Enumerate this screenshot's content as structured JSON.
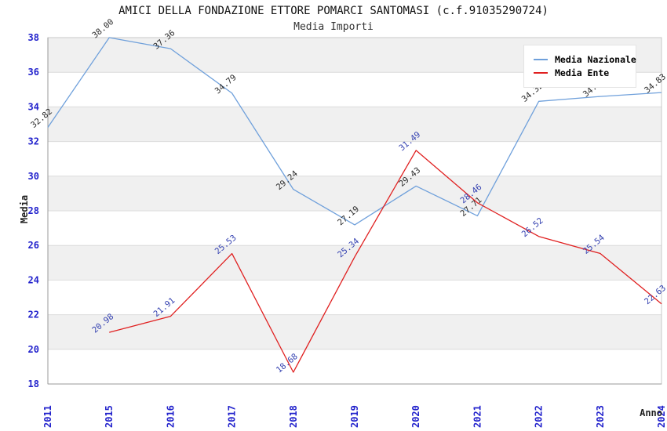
{
  "header": {
    "title": "AMICI DELLA FONDAZIONE ETTORE POMARCI SANTOMASI (c.f.91035290724)",
    "subtitle": "Media Importi"
  },
  "axes": {
    "y_title": "Media",
    "x_title": "Anno"
  },
  "legend": {
    "items": [
      {
        "label": "Media Nazionale",
        "color": "#6FA0DB"
      },
      {
        "label": "Media Ente",
        "color": "#E02020"
      }
    ],
    "position": "top-right"
  },
  "chart_data": {
    "type": "line",
    "title": "AMICI DELLA FONDAZIONE ETTORE POMARCI SANTOMASI (c.f.91035290724)",
    "subtitle": "Media Importi",
    "xlabel": "Anno",
    "ylabel": "Media",
    "categories": [
      "2011",
      "2015",
      "2016",
      "2017",
      "2018",
      "2019",
      "2020",
      "2021",
      "2022",
      "2023",
      "2024"
    ],
    "series": [
      {
        "name": "Media Nazionale",
        "color": "#6FA0DB",
        "label_color": "#2a2a2a",
        "values": [
          32.82,
          38.0,
          37.36,
          34.79,
          29.24,
          27.19,
          29.43,
          27.71,
          34.32,
          34.6,
          34.83
        ]
      },
      {
        "name": "Media Ente",
        "color": "#E02020",
        "label_color": "#3340B0",
        "values": [
          null,
          20.98,
          21.91,
          25.53,
          18.68,
          25.34,
          31.49,
          28.46,
          26.52,
          25.54,
          22.63
        ]
      }
    ],
    "ylim": [
      18,
      38
    ],
    "ytick_step": 2,
    "tick_label_color": "#2222CC",
    "band_color": "#F0F0F0",
    "gridline_color": "#DBDBDB",
    "axis_color": "#999999",
    "border_color": "#C8C8C8",
    "grid": "horizontal-bands",
    "legend_position": "top-right"
  }
}
